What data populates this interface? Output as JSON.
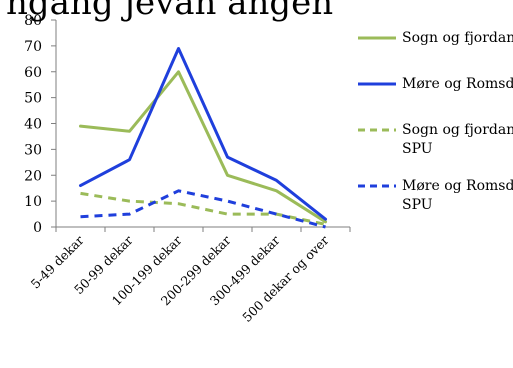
{
  "chart_data": {
    "type": "line",
    "title": "",
    "title_visible_fragment": "ngång  jevan  angen",
    "xlabel": "",
    "ylabel": "",
    "categories": [
      "5-49 dekar",
      "50-99 dekar",
      "100-199 dekar",
      "200-299 dekar",
      "300-499 dekar",
      "500 dekar og over"
    ],
    "ylim": [
      0,
      80
    ],
    "yticks": [
      "0",
      "10",
      "20",
      "30",
      "40",
      "50",
      "60",
      "70",
      "80"
    ],
    "grid": false,
    "legend_position": "right",
    "series": [
      {
        "name": "Sogn og fjordane",
        "values": [
          39,
          37,
          60,
          20,
          14,
          2
        ],
        "color": "#9bbb59",
        "dash": "solid"
      },
      {
        "name": "Møre og Romsdal",
        "values": [
          16,
          26,
          69,
          27,
          18,
          3
        ],
        "color": "#1f3fdc",
        "dash": "solid"
      },
      {
        "name": "Sogn og fjordane SPU",
        "values": [
          13,
          10,
          9,
          5,
          5,
          1
        ],
        "color": "#9bbb59",
        "dash": "dashed"
      },
      {
        "name": "Møre og Romsdal SPU",
        "values": [
          4,
          5,
          14,
          10,
          5,
          0
        ],
        "color": "#1f3fdc",
        "dash": "dashed"
      }
    ],
    "legend_labels": [
      [
        "Sogn og fjordane"
      ],
      [
        "Møre og Romsdal"
      ],
      [
        "Sogn og fjordane",
        "SPU"
      ],
      [
        "Møre og Romsdal",
        "SPU"
      ]
    ]
  }
}
